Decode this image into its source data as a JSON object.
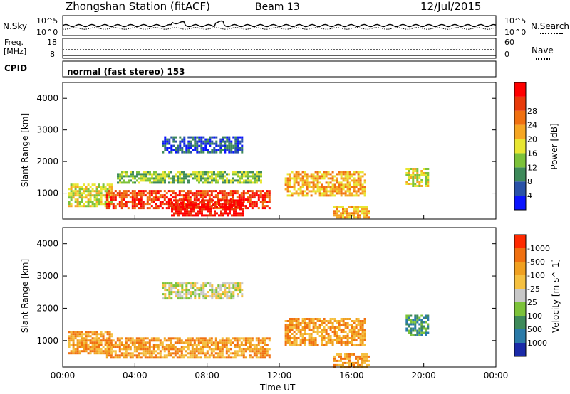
{
  "header": {
    "station": "Zhongshan Station (fitACF)",
    "beam": "Beam 13",
    "date": "12/Jul/2015"
  },
  "noise_panel": {
    "left_label": "N.Sky",
    "right_label": "N.Search",
    "left_ticks": [
      "10^5",
      "10^0"
    ],
    "right_ticks": [
      "10^5",
      "10^0"
    ]
  },
  "freq_panel": {
    "left_label_1": "Freq.",
    "left_label_2": "[MHz]",
    "right_label": "Nave",
    "left_ticks": [
      "18",
      "8"
    ],
    "right_ticks": [
      "60",
      "0"
    ]
  },
  "cpid_panel": {
    "label": "CPID",
    "text": "normal (fast stereo) 153"
  },
  "chart_data": [
    {
      "type": "heatmap",
      "quantity": "Power",
      "ylabel": "Slant Range [km]",
      "ylim": [
        180,
        4500
      ],
      "xlim_hours": [
        0,
        24
      ],
      "y_ticks": [
        1000,
        2000,
        3000,
        4000
      ],
      "colorbar": {
        "label": "Power [dB]",
        "tick_labels": [
          "4",
          "8",
          "12",
          "16",
          "20",
          "24",
          "28"
        ],
        "colors": [
          "#0a14ff",
          "#2a52a8",
          "#3e8a5a",
          "#7cc23a",
          "#e8e632",
          "#f5a623",
          "#f07010",
          "#e83a0a",
          "#ff0000"
        ]
      },
      "echo_regions": [
        {
          "x0": 0.3,
          "x1": 2.7,
          "r0": 600,
          "r1": 1300,
          "level": 4
        },
        {
          "x0": 2.4,
          "x1": 11.5,
          "r0": 500,
          "r1": 1100,
          "level": 7
        },
        {
          "x0": 6.0,
          "x1": 10.0,
          "r0": 300,
          "r1": 800,
          "level": 8
        },
        {
          "x0": 3.0,
          "x1": 11.0,
          "r0": 1300,
          "r1": 1700,
          "level": 3
        },
        {
          "x0": 5.5,
          "x1": 10.0,
          "r0": 2300,
          "r1": 2800,
          "level": 1
        },
        {
          "x0": 12.3,
          "x1": 16.7,
          "r0": 900,
          "r1": 1700,
          "level": 5
        },
        {
          "x0": 15.0,
          "x1": 17.0,
          "r0": 200,
          "r1": 600,
          "level": 5
        },
        {
          "x0": 19.0,
          "x1": 20.3,
          "r0": 1200,
          "r1": 1800,
          "level": 4
        }
      ]
    },
    {
      "type": "heatmap",
      "quantity": "Velocity",
      "ylabel": "Slant Range [km]",
      "ylim": [
        180,
        4500
      ],
      "xlim_hours": [
        0,
        24
      ],
      "y_ticks": [
        1000,
        2000,
        3000,
        4000
      ],
      "colorbar": {
        "label": "Velocity [m s^-1]",
        "tick_labels": [
          "1000",
          "500",
          "100",
          "25",
          "-25",
          "-100",
          "-500",
          "-1000"
        ],
        "colors": [
          "#1a2aa8",
          "#2a7aa8",
          "#3e8a5a",
          "#7cc23a",
          "#c8c8c8",
          "#f5c040",
          "#f0a020",
          "#f07010",
          "#ff2a00"
        ]
      },
      "echo_regions": [
        {
          "x0": 0.3,
          "x1": 2.7,
          "r0": 600,
          "r1": 1300,
          "level": 6
        },
        {
          "x0": 2.4,
          "x1": 11.5,
          "r0": 500,
          "r1": 1100,
          "level": 6
        },
        {
          "x0": 5.5,
          "x1": 10.0,
          "r0": 2300,
          "r1": 2800,
          "level": 4
        },
        {
          "x0": 12.3,
          "x1": 16.7,
          "r0": 900,
          "r1": 1700,
          "level": 6
        },
        {
          "x0": 15.0,
          "x1": 17.0,
          "r0": 200,
          "r1": 600,
          "level": 6
        },
        {
          "x0": 19.0,
          "x1": 20.3,
          "r0": 1200,
          "r1": 1800,
          "level": 2
        }
      ]
    }
  ],
  "x_axis": {
    "tick_labels": [
      "00:00",
      "04:00",
      "08:00",
      "12:00",
      "16:00",
      "20:00",
      "00:00"
    ],
    "label": "Time UT"
  }
}
